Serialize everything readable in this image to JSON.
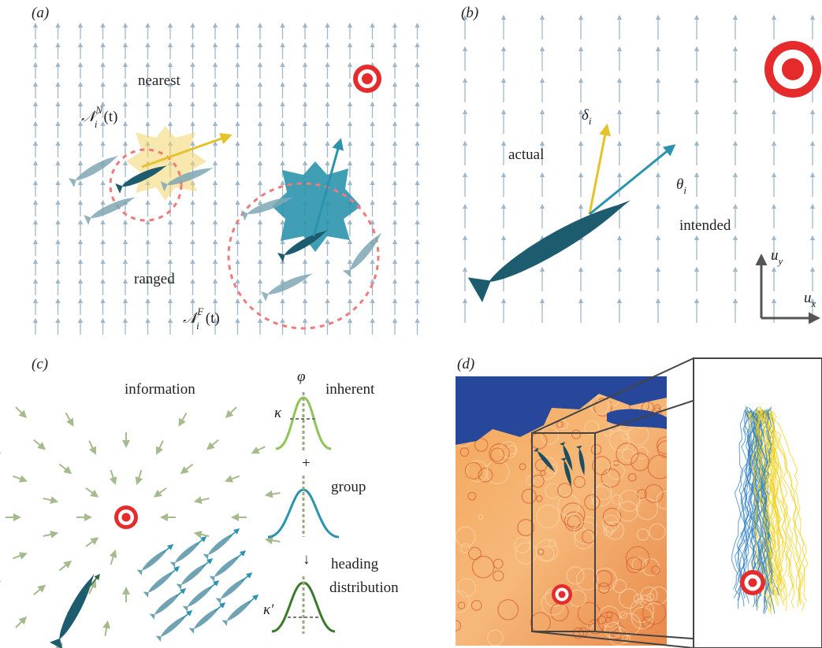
{
  "panel_a": {
    "label": "(a)",
    "nearest": "nearest",
    "ranged": "ranged",
    "nearest_set": {
      "symbol": "𝒩",
      "sup": "N",
      "sub": "i",
      "arg": "(t)"
    },
    "ranged_set": {
      "symbol": "𝒩",
      "sup": "F",
      "sub": "i",
      "arg": "(t)"
    }
  },
  "panel_b": {
    "label": "(b)",
    "delta": {
      "symbol": "δ",
      "sub": "i"
    },
    "actual": "actual",
    "theta": {
      "symbol": "θ",
      "sub": "i"
    },
    "intended": "intended",
    "uy": {
      "symbol": "u",
      "sub": "y"
    },
    "ux": {
      "symbol": "u",
      "sub": "x"
    }
  },
  "panel_c": {
    "label": "(c)",
    "information": "information",
    "phi": "φ",
    "kappa": "κ",
    "inherent": "inherent",
    "plus": "+",
    "group": "group",
    "arrow": "↓",
    "heading": "heading",
    "distribution": "distribution",
    "kappa_prime": "κ′"
  },
  "panel_d": {
    "label": "(d)"
  }
}
